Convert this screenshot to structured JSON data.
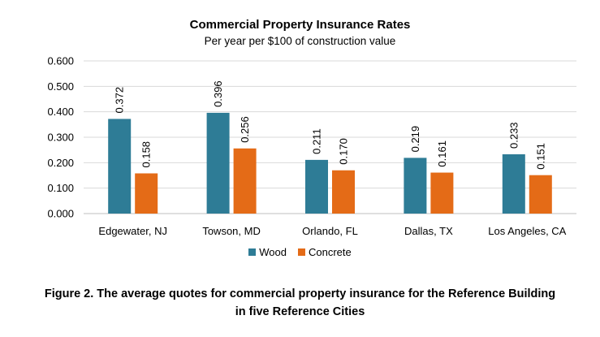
{
  "chart_data": {
    "type": "bar",
    "title": "Commercial Property Insurance Rates",
    "subtitle": "Per year per $100 of construction value",
    "categories": [
      "Edgewater, NJ",
      "Towson, MD",
      "Orlando, FL",
      "Dallas, TX",
      "Los Angeles, CA"
    ],
    "series": [
      {
        "name": "Wood",
        "color": "#2e7c96",
        "values": [
          0.372,
          0.396,
          0.211,
          0.219,
          0.233
        ],
        "labels": [
          "0.372",
          "0.396",
          "0.211",
          "0.219",
          "0.233"
        ]
      },
      {
        "name": "Concrete",
        "color": "#e46b17",
        "values": [
          0.158,
          0.256,
          0.17,
          0.161,
          0.151
        ],
        "labels": [
          "0.158",
          "0.256",
          "0.170",
          "0.161",
          "0.151"
        ]
      }
    ],
    "ylim": [
      0,
      0.6
    ],
    "yticks": [
      "0.000",
      "0.100",
      "0.200",
      "0.300",
      "0.400",
      "0.500",
      "0.600"
    ],
    "grid": true,
    "legend": "bottom-center"
  },
  "caption": {
    "line1": "Figure 2. The average quotes for commercial property insurance for the Reference Building",
    "line2": "in five Reference Cities"
  }
}
